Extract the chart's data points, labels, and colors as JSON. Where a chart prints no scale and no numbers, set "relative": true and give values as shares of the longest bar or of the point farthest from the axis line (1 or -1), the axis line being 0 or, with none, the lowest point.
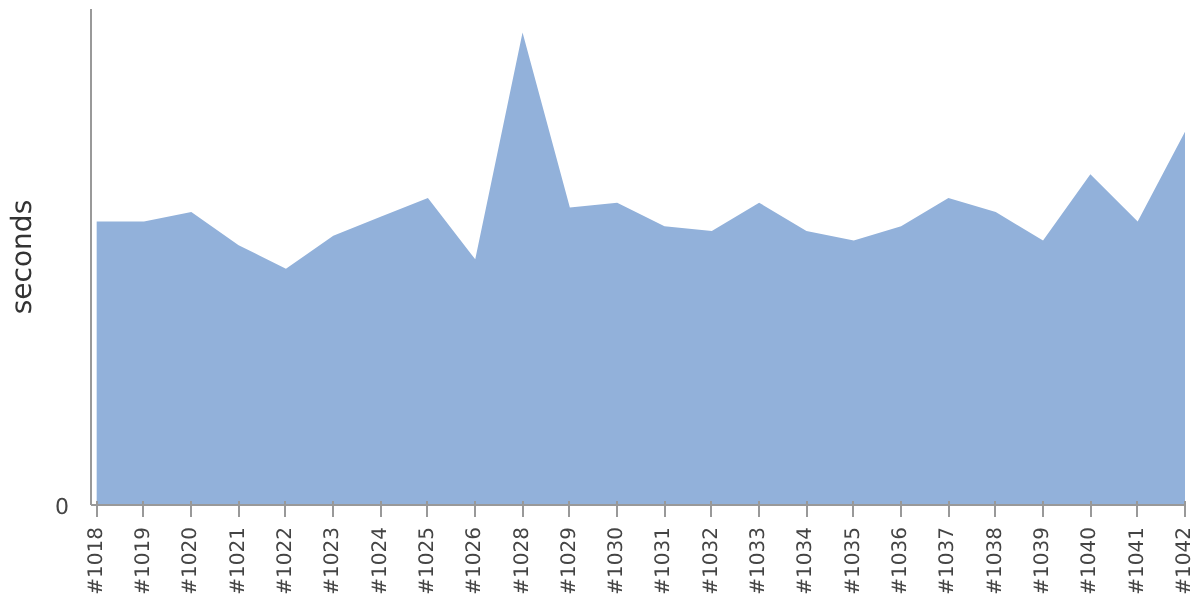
{
  "chart_data": {
    "type": "area",
    "relative": true,
    "ylabel": "seconds",
    "categories": [
      "#1018",
      "#1019",
      "#1020",
      "#1021",
      "#1022",
      "#1023",
      "#1024",
      "#1025",
      "#1026",
      "#1028",
      "#1029",
      "#1030",
      "#1031",
      "#1032",
      "#1033",
      "#1034",
      "#1035",
      "#1036",
      "#1037",
      "#1038",
      "#1039",
      "#1040",
      "#1041",
      "#1042"
    ],
    "series": [
      {
        "color": "#92b1da",
        "values": [
          0.6,
          0.6,
          0.62,
          0.55,
          0.5,
          0.57,
          0.61,
          0.65,
          0.52,
          1,
          0.63,
          0.64,
          0.59,
          0.58,
          0.64,
          0.58,
          0.56,
          0.59,
          0.65,
          0.62,
          0.56,
          0.7,
          0.6,
          0.79
        ]
      }
    ],
    "annotations": [
      "0"
    ],
    "grid": false
  }
}
